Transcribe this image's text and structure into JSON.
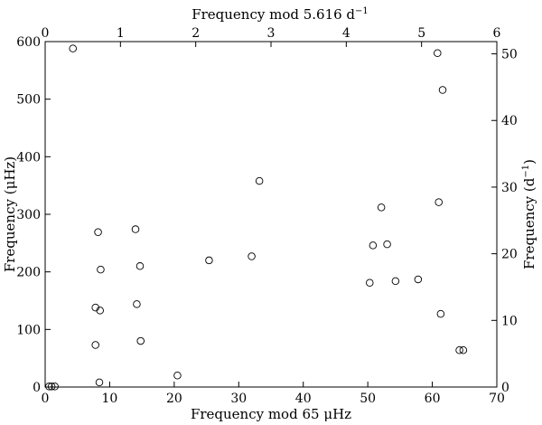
{
  "chart_data": {
    "type": "scatter",
    "xlabel_bottom": "Frequency mod 65 μHz",
    "xlabel_top": "Frequency mod 5.616 d",
    "xlabel_top_superscript": "−1",
    "ylabel_left": "Frequency (μHz)",
    "ylabel_right": "Frequency (d",
    "ylabel_right_superscript": "−1",
    "ylabel_right_suffix": ")",
    "xlim_bottom": [
      0,
      70
    ],
    "xlim_top": [
      0,
      6
    ],
    "ylim_left": [
      0,
      600
    ],
    "ylim_right": [
      0,
      51.84
    ],
    "xticks_bottom": [
      "0",
      "10",
      "20",
      "30",
      "40",
      "50",
      "60",
      "70"
    ],
    "xticks_top": [
      "0",
      "1",
      "2",
      "3",
      "4",
      "5",
      "6"
    ],
    "yticks_left": [
      "0",
      "100",
      "200",
      "300",
      "400",
      "500",
      "600"
    ],
    "yticks_right": [
      "0",
      "10",
      "20",
      "30",
      "40",
      "50"
    ],
    "grid": false,
    "series": [
      {
        "x": [
          0.6,
          1.0,
          1.5,
          4.3,
          8.2,
          8.6,
          8.4,
          7.8,
          7.8,
          8.5,
          14.0,
          14.7,
          14.2,
          14.8,
          20.5,
          25.4,
          32.0,
          33.2,
          50.3,
          50.8,
          52.1,
          53.0,
          54.3,
          57.8,
          60.8,
          61.0,
          61.3,
          61.6,
          64.2,
          64.8
        ],
        "y": [
          1,
          1,
          1,
          588,
          269,
          204,
          8,
          138,
          73,
          133,
          274,
          210,
          144,
          80,
          20,
          220,
          227,
          358,
          181,
          246,
          312,
          248,
          184,
          187,
          580,
          321,
          127,
          516,
          64,
          64
        ]
      }
    ]
  }
}
